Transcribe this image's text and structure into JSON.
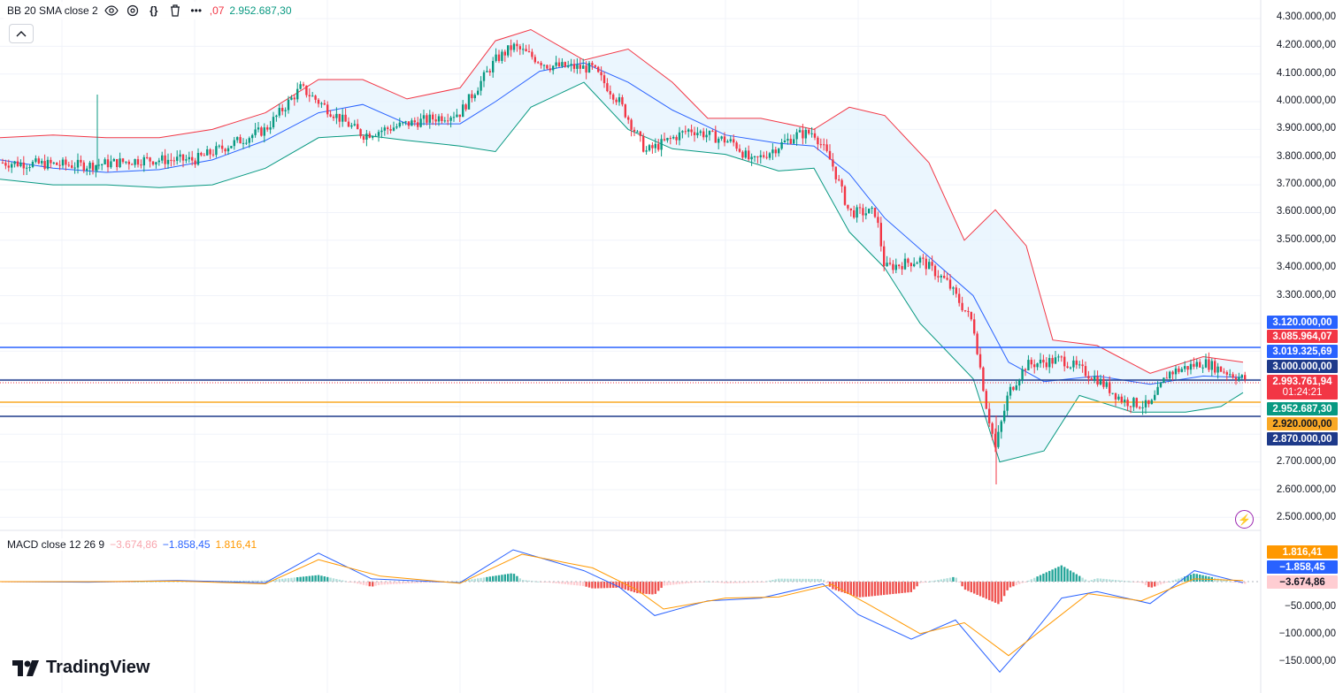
{
  "indicator_bb": {
    "label": "BB 20 SMA close 2",
    "value_partial": ",07",
    "value_lower": "2.952.687,30"
  },
  "indicator_macd": {
    "label": "MACD close 12 26 9",
    "histogram": "−3.674,86",
    "macd": "−1.858,45",
    "signal": "1.816,41"
  },
  "price_axis": [
    "4.300.000,00",
    "4.200.000,00",
    "4.100.000,00",
    "4.000.000,00",
    "3.900.000,00",
    "3.800.000,00",
    "3.700.000,00",
    "3.600.000,00",
    "3.500.000,00",
    "3.400.000,00",
    "3.300.000,00",
    "2.700.000,00",
    "2.600.000,00",
    "2.500.000,00"
  ],
  "macd_axis": [
    "−50.000,00",
    "−100.000,00",
    "−150.000,00"
  ],
  "price_tags": [
    {
      "text": "3.120.000,00",
      "color": "#2962ff"
    },
    {
      "text": "3.085.964,07",
      "color": "#f23645"
    },
    {
      "text": "3.019.325,69",
      "color": "#2962ff"
    },
    {
      "text": "3.000.000,00",
      "color": "#1e3a8a"
    },
    {
      "text": "2.993.761,94",
      "color": "#f23645"
    },
    {
      "text": "01:24:21",
      "color": "#f23645"
    },
    {
      "text": "2.952.687,30",
      "color": "#089981"
    },
    {
      "text": "2.920.000,00",
      "color": "#f9a825"
    },
    {
      "text": "2.870.000,00",
      "color": "#1e3a8a"
    }
  ],
  "macd_tags": [
    {
      "text": "1.816,41",
      "color": "#ff9800"
    },
    {
      "text": "−1.858,45",
      "color": "#2962ff"
    },
    {
      "text": "−3.674,86",
      "color": "#ffcdd2"
    }
  ],
  "brand": "TradingView",
  "colors": {
    "up": "#089981",
    "down": "#f23645",
    "bb_upper": "#f23645",
    "bb_lower": "#089981",
    "bb_basis": "#2962ff",
    "macd": "#2962ff",
    "signal": "#ff9800"
  },
  "icons": [
    "eye-icon",
    "settings-icon",
    "code-icon",
    "trash-icon",
    "more-icon",
    "chevron-up-icon",
    "lightning-icon"
  ]
}
